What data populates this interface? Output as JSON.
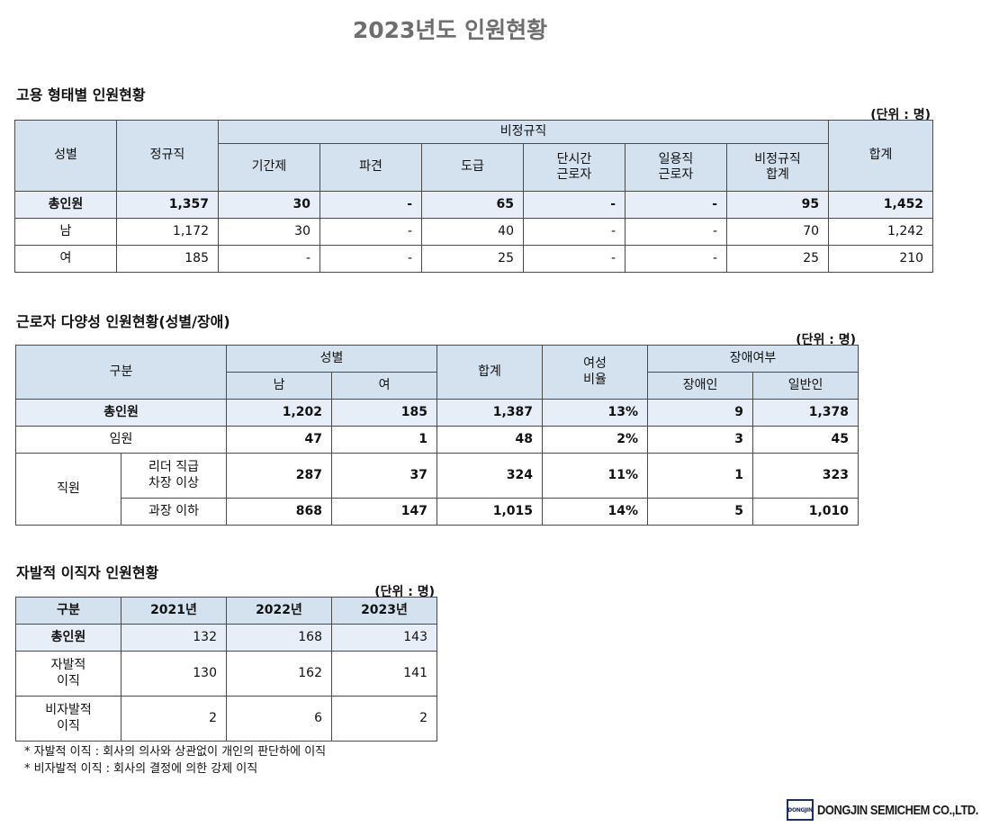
{
  "title": "2023년도 인원현황",
  "employment": {
    "section_title": "고용 형태별 인원현황",
    "unit": "(단위 : 명)",
    "headers": {
      "gender": "성별",
      "regular": "정규직",
      "nonregular": "비정규직",
      "fixed_term": "기간제",
      "dispatch": "파견",
      "subcontract": "도급",
      "part_time": "단시간\n근로자",
      "daily": "일용직\n근로자",
      "nonregular_total": "비정규직\n합계",
      "total": "합계"
    },
    "rows": [
      {
        "label": "총인원",
        "regular": "1,357",
        "fixed_term": "30",
        "dispatch": "-",
        "subcontract": "65",
        "part_time": "-",
        "daily": "-",
        "nonregular_total": "95",
        "total": "1,452"
      },
      {
        "label": "남",
        "regular": "1,172",
        "fixed_term": "30",
        "dispatch": "-",
        "subcontract": "40",
        "part_time": "-",
        "daily": "-",
        "nonregular_total": "70",
        "total": "1,242"
      },
      {
        "label": "여",
        "regular": "185",
        "fixed_term": "-",
        "dispatch": "-",
        "subcontract": "25",
        "part_time": "-",
        "daily": "-",
        "nonregular_total": "25",
        "total": "210"
      }
    ]
  },
  "diversity": {
    "section_title": "근로자 다양성 인원현황(성별/장애)",
    "unit": "(단위 : 명)",
    "headers": {
      "category": "구분",
      "gender": "성별",
      "male": "남",
      "female": "여",
      "total": "합계",
      "female_ratio": "여성\n비율",
      "disability": "장애여부",
      "disabled": "장애인",
      "non_disabled": "일반인"
    },
    "rows": [
      {
        "label": "총인원",
        "male": "1,202",
        "female": "185",
        "total": "1,387",
        "ratio": "13%",
        "disabled": "9",
        "non_disabled": "1,378"
      },
      {
        "label": "임원",
        "male": "47",
        "female": "1",
        "total": "48",
        "ratio": "2%",
        "disabled": "3",
        "non_disabled": "45"
      },
      {
        "group": "직원",
        "label": "리더 직급\n차장 이상",
        "male": "287",
        "female": "37",
        "total": "324",
        "ratio": "11%",
        "disabled": "1",
        "non_disabled": "323"
      },
      {
        "label": "과장 이하",
        "male": "868",
        "female": "147",
        "total": "1,015",
        "ratio": "14%",
        "disabled": "5",
        "non_disabled": "1,010"
      }
    ]
  },
  "turnover": {
    "section_title": "자발적 이직자 인원현황",
    "unit": "(단위 : 명)",
    "headers": {
      "category": "구분",
      "y2021": "2021년",
      "y2022": "2022년",
      "y2023": "2023년"
    },
    "rows": [
      {
        "label": "총인원",
        "y2021": "132",
        "y2022": "168",
        "y2023": "143"
      },
      {
        "label": "자발적\n이직",
        "y2021": "130",
        "y2022": "162",
        "y2023": "141"
      },
      {
        "label": "비자발적\n이직",
        "y2021": "2",
        "y2022": "6",
        "y2023": "2"
      }
    ],
    "notes": [
      "* 자발적 이직 : 회사의 의사와 상관없이 개인의 판단하에 이직",
      "* 비자발적 이직 : 회사의 결정에 의한 강제 이직"
    ]
  },
  "logo": {
    "mark": "DONGJIN",
    "text": "DONGJIN SEMICHEM CO.,LTD."
  }
}
